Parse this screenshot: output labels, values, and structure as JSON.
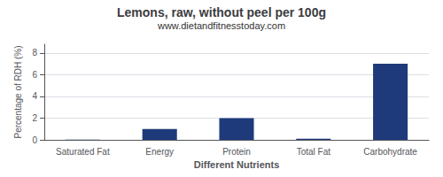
{
  "chart_data": {
    "type": "bar",
    "title": "Lemons, raw, without peel per 100g",
    "subtitle": "www.dietandfitnesstoday.com",
    "xlabel": "Different Nutrients",
    "ylabel": "Percentage of RDH (%)",
    "categories": [
      "Saturated Fat",
      "Energy",
      "Protein",
      "Total Fat",
      "Carbohydrate"
    ],
    "values": [
      0.03,
      1.0,
      2.0,
      0.1,
      7.0
    ],
    "color": "#1f3a7a",
    "ylim": [
      0,
      8.8
    ],
    "yticks": [
      0,
      2,
      4,
      6,
      8
    ],
    "grid": true
  }
}
